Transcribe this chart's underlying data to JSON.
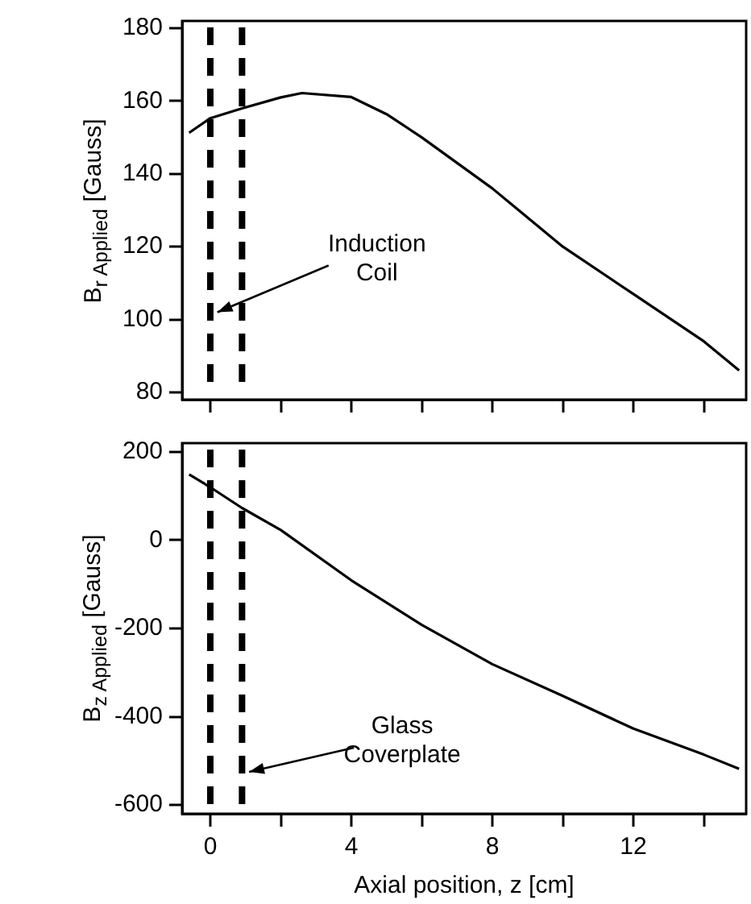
{
  "chart_data": [
    {
      "type": "line",
      "ylabel": "B$_{r Applied}$ [Gauss]",
      "x": [
        -0.6,
        0,
        0.9,
        2,
        2.6,
        4,
        5,
        6,
        8,
        10,
        12,
        14,
        15
      ],
      "values": [
        151.3,
        155.3,
        158,
        161,
        162.2,
        161.1,
        156.4,
        150,
        136,
        120,
        107,
        94,
        86
      ],
      "color": "#000000",
      "marker": "none",
      "line_style": "solid",
      "xlim": [
        -0.8,
        15.2
      ],
      "xticks": [
        0,
        {
          "value": 2,
          "label": null
        },
        4,
        {
          "value": 6,
          "label": null
        },
        8,
        {
          "value": 10,
          "label": null
        },
        12,
        {
          "value": 14,
          "label": null
        }
      ],
      "ylim": [
        78,
        182
      ],
      "yticks": [
        80,
        100,
        120,
        140,
        160,
        180
      ],
      "tick_labels": "y",
      "ref_lines": [
        {
          "axis": "x",
          "value": 0,
          "color": "#000000",
          "line_style": "dashed"
        },
        {
          "axis": "x",
          "value": 0.9,
          "color": "#000000",
          "line_style": "dashed"
        }
      ],
      "annotations": [
        {
          "text": "Induction Coil",
          "x": 0.2,
          "y": 102
        }
      ]
    },
    {
      "type": "line",
      "xlabel": "Axial position, z [cm]",
      "ylabel": "B$_{z Applied}$ [Gauss]",
      "x": [
        -0.6,
        0,
        0.9,
        2,
        4,
        6,
        8,
        10,
        12,
        14,
        15
      ],
      "values": [
        149,
        120,
        73,
        23,
        -91,
        -192,
        -281,
        -353,
        -427,
        -486,
        -518
      ],
      "color": "#000000",
      "marker": "none",
      "line_style": "solid",
      "xlim": [
        -0.8,
        15.2
      ],
      "xticks": [
        0,
        {
          "value": 2,
          "label": null
        },
        4,
        {
          "value": 6,
          "label": null
        },
        8,
        {
          "value": 10,
          "label": null
        },
        12,
        {
          "value": 14,
          "label": null
        }
      ],
      "ylim": [
        -620,
        220
      ],
      "yticks": [
        -600,
        -400,
        -200,
        0,
        200
      ],
      "ref_lines": [
        {
          "axis": "x",
          "value": 0,
          "color": "#000000",
          "line_style": "dashed"
        },
        {
          "axis": "x",
          "value": 0.9,
          "color": "#000000",
          "line_style": "dashed"
        }
      ],
      "annotations": [
        {
          "text": "Glass Coverplate",
          "x": 1.1,
          "y": -525
        }
      ]
    }
  ]
}
